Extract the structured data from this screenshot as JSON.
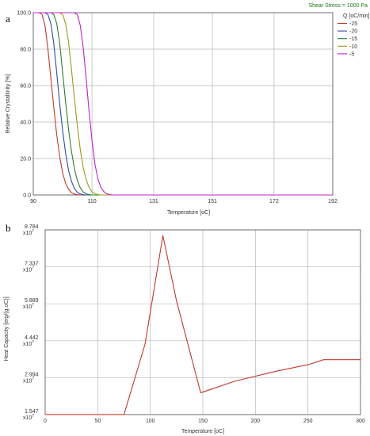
{
  "chart_data": [
    {
      "panel": "a",
      "type": "line",
      "title": "",
      "annotation": "Shear Stress = 1000 Pa",
      "xlabel": "Temperature [oC]",
      "ylabel": "Relative Crystallinity [%]",
      "xlim": [
        90,
        192
      ],
      "ylim": [
        0,
        100
      ],
      "xticks": [
        90,
        110,
        131,
        151,
        172,
        192
      ],
      "yticks": [
        0,
        20,
        40,
        60,
        80,
        100
      ],
      "ytick_labels": [
        "0.0",
        "20.0",
        "40.0",
        "60.0",
        "80.0",
        "100.0"
      ],
      "grid": true,
      "legend_position": "right",
      "legend_title": "Q [oC/min]",
      "series": [
        {
          "name": "-25",
          "color": "#c0392b",
          "x": [
            90,
            92,
            93,
            94,
            95,
            96,
            97,
            98,
            99,
            100,
            101,
            102,
            103,
            104,
            105,
            106,
            192
          ],
          "y": [
            100,
            100,
            99,
            93,
            80,
            64,
            48,
            33,
            21,
            12,
            6.5,
            3.2,
            1.3,
            0.5,
            0.2,
            0,
            0
          ]
        },
        {
          "name": "-20",
          "color": "#2e4aa8",
          "x": [
            90,
            94,
            95,
            96,
            97,
            98,
            99,
            100,
            101,
            102,
            103,
            104,
            105,
            106,
            107,
            108,
            192
          ],
          "y": [
            100,
            100,
            99,
            94,
            83,
            67,
            50,
            35,
            23,
            13.5,
            7.5,
            3.6,
            1.5,
            0.6,
            0.2,
            0,
            0
          ]
        },
        {
          "name": "-15",
          "color": "#2e7d32",
          "x": [
            90,
            96,
            97,
            98,
            99,
            100,
            101,
            102,
            103,
            104,
            105,
            106,
            107,
            108,
            109,
            110,
            192
          ],
          "y": [
            100,
            100,
            99,
            94,
            83,
            67,
            51,
            36,
            24,
            14.5,
            8,
            4,
            1.7,
            0.7,
            0.2,
            0,
            0
          ]
        },
        {
          "name": "-10",
          "color": "#9a9a1a",
          "x": [
            90,
            99,
            100,
            101,
            102,
            103,
            104,
            105,
            106,
            107,
            108,
            109,
            110,
            111,
            112,
            113,
            192
          ],
          "y": [
            100,
            100,
            99,
            94,
            84,
            69,
            53,
            38,
            25,
            15,
            8.5,
            4.2,
            1.8,
            0.7,
            0.2,
            0,
            0
          ]
        },
        {
          "name": "-5",
          "color": "#c020c8",
          "x": [
            90,
            104,
            105,
            106,
            107,
            108,
            109,
            110,
            111,
            112,
            113,
            114,
            115,
            116,
            117,
            192
          ],
          "y": [
            100,
            100,
            99,
            93,
            81,
            64,
            46,
            30,
            17,
            9,
            4.3,
            1.9,
            0.7,
            0.2,
            0,
            0
          ]
        }
      ]
    },
    {
      "panel": "b",
      "type": "line",
      "title": "",
      "xlabel": "Temperature [oC]",
      "ylabel": "Heat Capacity [erg/(g.oC)]",
      "xlim": [
        0,
        300
      ],
      "ylim": [
        1.547,
        8.784
      ],
      "xticks": [
        0,
        50,
        100,
        150,
        200,
        250,
        300
      ],
      "yticks": [
        1.547,
        2.994,
        4.442,
        5.889,
        7.337,
        8.784
      ],
      "ytick_labels": [
        "1.547",
        "2.994",
        "4.442",
        "5.889",
        "7.337",
        "8.784"
      ],
      "ytick_exponent": "x10^7",
      "grid": true,
      "series": [
        {
          "name": "",
          "color": "#c0392b",
          "x": [
            0,
            75,
            95,
            112,
            125,
            148,
            180,
            220,
            250,
            265,
            300
          ],
          "y": [
            1.55,
            1.55,
            4.3,
            8.56,
            6.0,
            2.4,
            2.85,
            3.25,
            3.5,
            3.7,
            3.7
          ]
        }
      ]
    }
  ]
}
